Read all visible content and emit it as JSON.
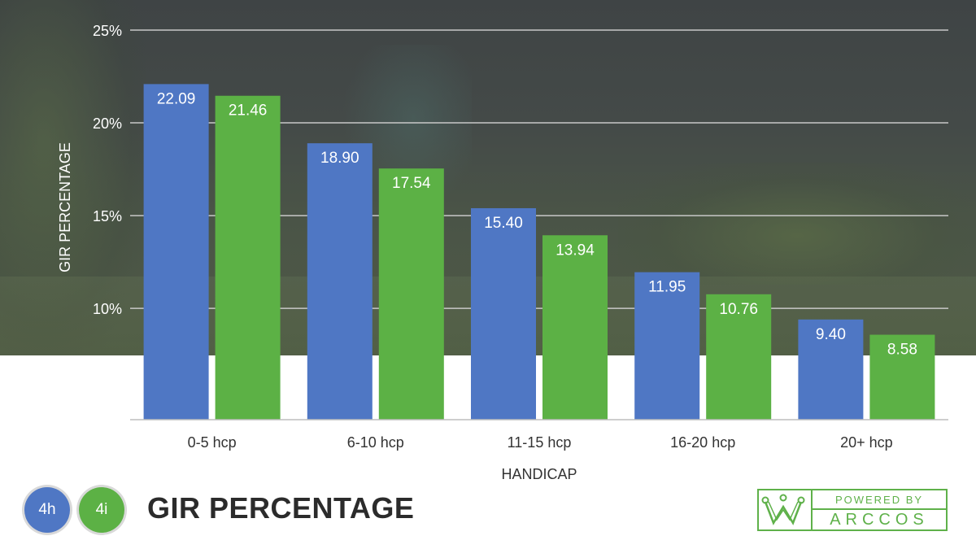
{
  "chart_data": {
    "type": "bar",
    "title": "GIR PERCENTAGE",
    "xlabel": "HANDICAP",
    "ylabel": "GIR PERCENTAGE",
    "categories": [
      "0-5 hcp",
      "6-10 hcp",
      "11-15 hcp",
      "16-20 hcp",
      "20+ hcp"
    ],
    "series": [
      {
        "name": "4h",
        "color": "#4f77c4",
        "values": [
          22.09,
          18.9,
          15.4,
          11.95,
          9.4
        ],
        "labels": [
          "22.09",
          "18.90",
          "15.40",
          "11.95",
          "9.40"
        ]
      },
      {
        "name": "4i",
        "color": "#5cb145",
        "values": [
          21.46,
          17.54,
          13.94,
          10.76,
          8.58
        ],
        "labels": [
          "21.46",
          "17.54",
          "13.94",
          "10.76",
          "8.58"
        ]
      }
    ],
    "ylim": [
      4,
      25
    ],
    "yticks": [
      10,
      15,
      20,
      25
    ],
    "ytick_labels": [
      "10%",
      "15%",
      "20%",
      "25%"
    ],
    "grid": true,
    "legend_position": "bottom-left"
  },
  "branding": {
    "powered_by": "POWERED BY",
    "brand": "ARCCOS",
    "accent_color": "#5fb14a"
  }
}
